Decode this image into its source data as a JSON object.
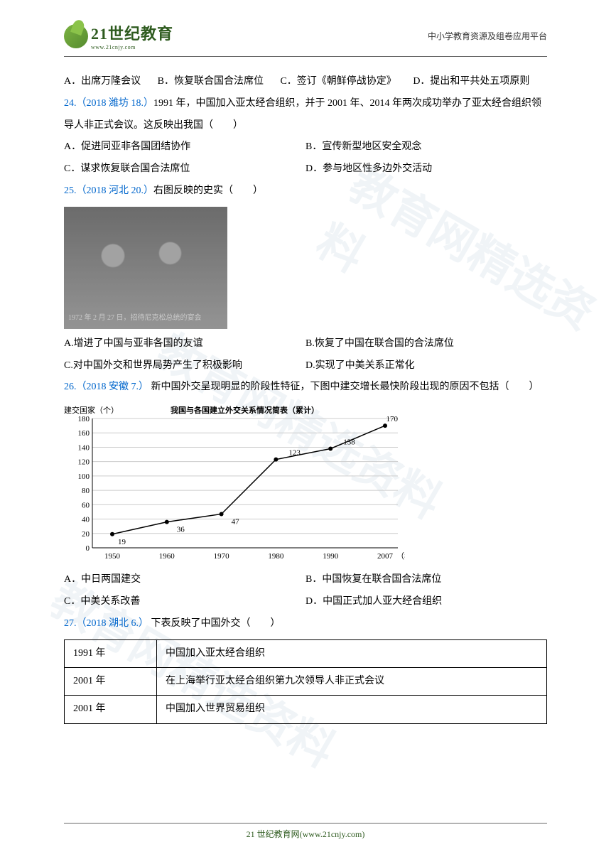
{
  "header": {
    "logo_main": "21世纪教育",
    "logo_sub": "www.21cnjy.com",
    "right_text": "中小学教育资源及组卷应用平台"
  },
  "watermark_text": "教育网精选资料",
  "q23": {
    "opt_a": "A．出席万隆会议",
    "opt_b": "B．恢复联合国合法席位",
    "opt_c": "C．签订《朝鲜停战协定》",
    "opt_d": "D．提出和平共处五项原则"
  },
  "q24": {
    "link": "24.（2018 潍坊 18.）",
    "stem": "1991 年，中国加入亚太经合组织，并于 2001 年、2014 年两次成功举办了亚太经合组织领导人非正式会议。这反映出我国（　　）",
    "opt_a": "A．促进同亚非各国团结协作",
    "opt_b": "B．宣传新型地区安全观念",
    "opt_c": "C．谋求恢复联合国合法席位",
    "opt_d": "D．参与地区性多边外交活动"
  },
  "q25": {
    "link": "25.（2018 河北 20.）",
    "stem": "右图反映的史实（　　）",
    "photo_caption": "1972 年 2 月 27 日，招待尼克松总统的宴会",
    "opt_a": "A.增进了中国与亚非各国的友谊",
    "opt_b": "B.恢复了中国在联合国的合法席位",
    "opt_c": "C.对中国外交和世界局势产生了积极影响",
    "opt_d": "D.实现了中美关系正常化"
  },
  "q26": {
    "link": "26.（2018 安徽 7.）",
    "stem": " 新中国外交呈现明显的阶段性特征，下图中建交增长最快阶段出现的原因不包括（　　）",
    "opt_a": "A．中日两国建交",
    "opt_b": "B．中国恢复在联合国合法席位",
    "opt_c": "C．中美关系改善",
    "opt_d": "D．中国正式加人亚大经合组织"
  },
  "q27": {
    "link": "27.（2018 湖北 6.）",
    "stem": " 下表反映了中国外交（　　）",
    "table": {
      "rows": [
        [
          "1991 年",
          "中国加入亚太经合组织"
        ],
        [
          "2001 年",
          "在上海举行亚太经合组织第九次领导人非正式会议"
        ],
        [
          "2001 年",
          "中国加入世界贸易组织"
        ]
      ]
    }
  },
  "chart": {
    "title": "我国与各国建立外交关系情况简表（累计）",
    "y_label": "建交国家（个）",
    "x_label": "（年）",
    "years": [
      "1950",
      "1960",
      "1970",
      "1980",
      "1990",
      "2007"
    ],
    "values": [
      19,
      36,
      47,
      123,
      138,
      170
    ],
    "ylim": [
      0,
      180
    ],
    "ytick_step": 20,
    "line_color": "#000000",
    "marker_color": "#000000",
    "grid_color": "#cccccc",
    "background": "#ffffff",
    "font_size": 11
  },
  "footer": {
    "text": "21 世纪教育网(www.21cnjy.com)"
  }
}
